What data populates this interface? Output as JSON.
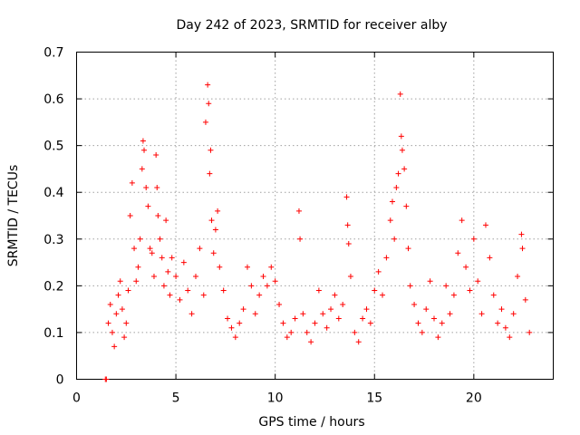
{
  "chart_data": {
    "type": "scatter",
    "title": "Day 242 of 2023, SRMTID for receiver alby",
    "xlabel": "GPS time / hours",
    "ylabel": "SRMTID / TECUs",
    "xlim": [
      0,
      24
    ],
    "ylim": [
      0,
      0.7
    ],
    "xticks": [
      0,
      5,
      10,
      15,
      20
    ],
    "yticks": [
      0,
      0.1,
      0.2,
      0.3,
      0.4,
      0.5,
      0.6,
      0.7
    ],
    "xtick_labels": [
      "0",
      "5",
      "10",
      "15",
      "20"
    ],
    "ytick_labels": [
      "0",
      "0.1",
      "0.2",
      "0.3",
      "0.4",
      "0.5",
      "0.6",
      "0.7"
    ],
    "grid": true,
    "marker": "+",
    "color": "#ff0000",
    "series": [
      {
        "name": "SRMTID",
        "points": [
          [
            1.45,
            0.0
          ],
          [
            1.5,
            0.0
          ],
          [
            1.6,
            0.12
          ],
          [
            1.7,
            0.16
          ],
          [
            1.8,
            0.1
          ],
          [
            1.9,
            0.07
          ],
          [
            2.0,
            0.14
          ],
          [
            2.1,
            0.18
          ],
          [
            2.2,
            0.21
          ],
          [
            2.3,
            0.15
          ],
          [
            2.4,
            0.09
          ],
          [
            2.5,
            0.12
          ],
          [
            2.6,
            0.19
          ],
          [
            2.7,
            0.35
          ],
          [
            2.8,
            0.42
          ],
          [
            2.9,
            0.28
          ],
          [
            3.0,
            0.21
          ],
          [
            3.1,
            0.24
          ],
          [
            3.2,
            0.3
          ],
          [
            3.3,
            0.45
          ],
          [
            3.35,
            0.51
          ],
          [
            3.4,
            0.49
          ],
          [
            3.5,
            0.41
          ],
          [
            3.6,
            0.37
          ],
          [
            3.7,
            0.28
          ],
          [
            3.8,
            0.27
          ],
          [
            3.9,
            0.22
          ],
          [
            4.0,
            0.48
          ],
          [
            4.05,
            0.41
          ],
          [
            4.1,
            0.35
          ],
          [
            4.2,
            0.3
          ],
          [
            4.3,
            0.26
          ],
          [
            4.4,
            0.2
          ],
          [
            4.5,
            0.34
          ],
          [
            4.6,
            0.23
          ],
          [
            4.7,
            0.18
          ],
          [
            4.8,
            0.26
          ],
          [
            5.0,
            0.22
          ],
          [
            5.2,
            0.17
          ],
          [
            5.4,
            0.25
          ],
          [
            5.6,
            0.19
          ],
          [
            5.8,
            0.14
          ],
          [
            6.0,
            0.22
          ],
          [
            6.2,
            0.28
          ],
          [
            6.4,
            0.18
          ],
          [
            6.5,
            0.55
          ],
          [
            6.6,
            0.63
          ],
          [
            6.65,
            0.59
          ],
          [
            6.7,
            0.44
          ],
          [
            6.75,
            0.49
          ],
          [
            6.8,
            0.34
          ],
          [
            6.9,
            0.27
          ],
          [
            7.0,
            0.32
          ],
          [
            7.1,
            0.36
          ],
          [
            7.2,
            0.24
          ],
          [
            7.4,
            0.19
          ],
          [
            7.6,
            0.13
          ],
          [
            7.8,
            0.11
          ],
          [
            8.0,
            0.09
          ],
          [
            8.2,
            0.12
          ],
          [
            8.4,
            0.15
          ],
          [
            8.6,
            0.24
          ],
          [
            8.8,
            0.2
          ],
          [
            9.0,
            0.14
          ],
          [
            9.2,
            0.18
          ],
          [
            9.4,
            0.22
          ],
          [
            9.6,
            0.2
          ],
          [
            9.8,
            0.24
          ],
          [
            10.0,
            0.21
          ],
          [
            10.2,
            0.16
          ],
          [
            10.4,
            0.12
          ],
          [
            10.6,
            0.09
          ],
          [
            10.8,
            0.1
          ],
          [
            11.0,
            0.13
          ],
          [
            11.2,
            0.36
          ],
          [
            11.25,
            0.3
          ],
          [
            11.4,
            0.14
          ],
          [
            11.6,
            0.1
          ],
          [
            11.8,
            0.08
          ],
          [
            12.0,
            0.12
          ],
          [
            12.2,
            0.19
          ],
          [
            12.4,
            0.14
          ],
          [
            12.6,
            0.11
          ],
          [
            12.8,
            0.15
          ],
          [
            13.0,
            0.18
          ],
          [
            13.2,
            0.13
          ],
          [
            13.4,
            0.16
          ],
          [
            13.6,
            0.39
          ],
          [
            13.65,
            0.33
          ],
          [
            13.7,
            0.29
          ],
          [
            13.8,
            0.22
          ],
          [
            14.0,
            0.1
          ],
          [
            14.2,
            0.08
          ],
          [
            14.4,
            0.13
          ],
          [
            14.6,
            0.15
          ],
          [
            14.8,
            0.12
          ],
          [
            15.0,
            0.19
          ],
          [
            15.2,
            0.23
          ],
          [
            15.4,
            0.18
          ],
          [
            15.6,
            0.26
          ],
          [
            15.8,
            0.34
          ],
          [
            15.9,
            0.38
          ],
          [
            16.0,
            0.3
          ],
          [
            16.1,
            0.41
          ],
          [
            16.2,
            0.44
          ],
          [
            16.3,
            0.61
          ],
          [
            16.35,
            0.52
          ],
          [
            16.4,
            0.49
          ],
          [
            16.5,
            0.45
          ],
          [
            16.6,
            0.37
          ],
          [
            16.7,
            0.28
          ],
          [
            16.8,
            0.2
          ],
          [
            17.0,
            0.16
          ],
          [
            17.2,
            0.12
          ],
          [
            17.4,
            0.1
          ],
          [
            17.6,
            0.15
          ],
          [
            17.8,
            0.21
          ],
          [
            18.0,
            0.13
          ],
          [
            18.2,
            0.09
          ],
          [
            18.4,
            0.12
          ],
          [
            18.6,
            0.2
          ],
          [
            18.8,
            0.14
          ],
          [
            19.0,
            0.18
          ],
          [
            19.2,
            0.27
          ],
          [
            19.4,
            0.34
          ],
          [
            19.6,
            0.24
          ],
          [
            19.8,
            0.19
          ],
          [
            20.0,
            0.3
          ],
          [
            20.2,
            0.21
          ],
          [
            20.4,
            0.14
          ],
          [
            20.6,
            0.33
          ],
          [
            20.8,
            0.26
          ],
          [
            21.0,
            0.18
          ],
          [
            21.2,
            0.12
          ],
          [
            21.4,
            0.15
          ],
          [
            21.6,
            0.11
          ],
          [
            21.8,
            0.09
          ],
          [
            22.0,
            0.14
          ],
          [
            22.2,
            0.22
          ],
          [
            22.4,
            0.31
          ],
          [
            22.45,
            0.28
          ],
          [
            22.6,
            0.17
          ],
          [
            22.8,
            0.1
          ]
        ]
      }
    ]
  }
}
